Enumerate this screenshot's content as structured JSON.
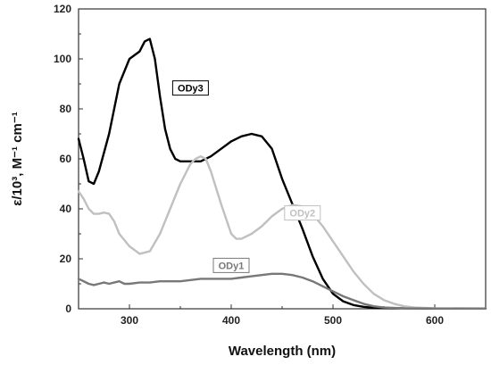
{
  "chart_data": {
    "type": "line",
    "xlabel": "Wavelength (nm)",
    "ylabel": "ε/10³, M⁻¹ cm⁻¹",
    "xlim": [
      250,
      650
    ],
    "ylim": [
      0,
      120
    ],
    "x_ticks": [
      "300",
      "400",
      "500",
      "600"
    ],
    "y_ticks": [
      "0",
      "20",
      "40",
      "60",
      "80",
      "100",
      "120"
    ],
    "grid": false,
    "series": [
      {
        "name": "ODy3",
        "color": "#000000",
        "points": [
          [
            250,
            68
          ],
          [
            255,
            60
          ],
          [
            260,
            51
          ],
          [
            265,
            50
          ],
          [
            270,
            55
          ],
          [
            280,
            70
          ],
          [
            290,
            90
          ],
          [
            300,
            100
          ],
          [
            310,
            103
          ],
          [
            315,
            107
          ],
          [
            320,
            108
          ],
          [
            325,
            100
          ],
          [
            330,
            85
          ],
          [
            335,
            72
          ],
          [
            340,
            64
          ],
          [
            345,
            60
          ],
          [
            350,
            59
          ],
          [
            360,
            59
          ],
          [
            370,
            59
          ],
          [
            380,
            61
          ],
          [
            390,
            64
          ],
          [
            400,
            67
          ],
          [
            410,
            69
          ],
          [
            420,
            70
          ],
          [
            430,
            69
          ],
          [
            440,
            64
          ],
          [
            450,
            52
          ],
          [
            460,
            42
          ],
          [
            470,
            32
          ],
          [
            480,
            21
          ],
          [
            490,
            12
          ],
          [
            500,
            6
          ],
          [
            510,
            3
          ],
          [
            520,
            1.5
          ],
          [
            530,
            0.8
          ],
          [
            540,
            0.4
          ],
          [
            560,
            0.2
          ],
          [
            600,
            0.1
          ],
          [
            650,
            0.1
          ]
        ]
      },
      {
        "name": "ODy2",
        "color": "#c0c0c0",
        "points": [
          [
            250,
            47
          ],
          [
            255,
            44
          ],
          [
            260,
            40
          ],
          [
            265,
            38
          ],
          [
            270,
            38
          ],
          [
            275,
            38.5
          ],
          [
            280,
            38
          ],
          [
            285,
            35
          ],
          [
            290,
            30
          ],
          [
            300,
            25
          ],
          [
            310,
            22
          ],
          [
            320,
            23
          ],
          [
            330,
            30
          ],
          [
            340,
            40
          ],
          [
            350,
            50
          ],
          [
            360,
            58
          ],
          [
            365,
            60
          ],
          [
            370,
            61
          ],
          [
            375,
            60
          ],
          [
            380,
            55
          ],
          [
            390,
            42
          ],
          [
            400,
            30
          ],
          [
            405,
            28
          ],
          [
            410,
            28
          ],
          [
            420,
            30
          ],
          [
            430,
            33
          ],
          [
            440,
            37
          ],
          [
            450,
            40
          ],
          [
            460,
            41.5
          ],
          [
            470,
            41
          ],
          [
            480,
            38
          ],
          [
            490,
            33
          ],
          [
            500,
            27
          ],
          [
            510,
            21
          ],
          [
            520,
            15
          ],
          [
            530,
            10
          ],
          [
            540,
            6
          ],
          [
            550,
            3.5
          ],
          [
            560,
            2
          ],
          [
            570,
            1
          ],
          [
            580,
            0.5
          ],
          [
            600,
            0.2
          ],
          [
            650,
            0.1
          ]
        ]
      },
      {
        "name": "ODy1",
        "color": "#787878",
        "points": [
          [
            250,
            12
          ],
          [
            255,
            11
          ],
          [
            260,
            10
          ],
          [
            265,
            9.5
          ],
          [
            270,
            10
          ],
          [
            275,
            10.5
          ],
          [
            280,
            10
          ],
          [
            285,
            10.5
          ],
          [
            290,
            11
          ],
          [
            295,
            10
          ],
          [
            300,
            10
          ],
          [
            310,
            10.5
          ],
          [
            320,
            10.5
          ],
          [
            330,
            11
          ],
          [
            340,
            11
          ],
          [
            350,
            11
          ],
          [
            360,
            11.5
          ],
          [
            370,
            12
          ],
          [
            380,
            12
          ],
          [
            390,
            12
          ],
          [
            400,
            12
          ],
          [
            410,
            12.5
          ],
          [
            420,
            13
          ],
          [
            430,
            13.5
          ],
          [
            440,
            14
          ],
          [
            450,
            14
          ],
          [
            460,
            13.5
          ],
          [
            470,
            12.5
          ],
          [
            480,
            11
          ],
          [
            490,
            9
          ],
          [
            500,
            7
          ],
          [
            510,
            5
          ],
          [
            520,
            3.5
          ],
          [
            530,
            2
          ],
          [
            540,
            1
          ],
          [
            550,
            0.5
          ],
          [
            570,
            0.2
          ],
          [
            600,
            0.1
          ],
          [
            650,
            0.1
          ]
        ]
      }
    ]
  }
}
